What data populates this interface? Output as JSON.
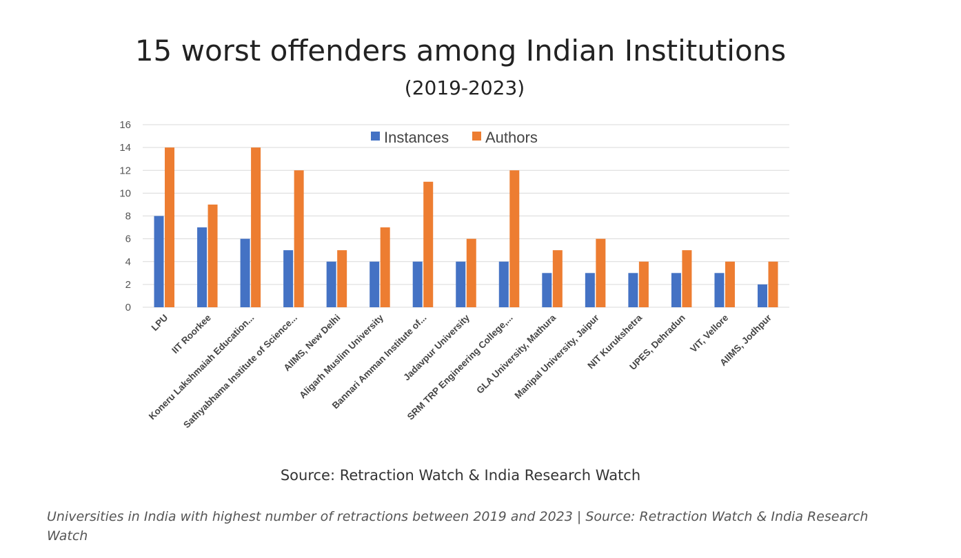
{
  "chart_data": {
    "type": "bar",
    "title": "15 worst offenders among Indian Institutions",
    "subtitle": "(2019-2023)",
    "categories": [
      "LPU",
      "IIT Roorkee",
      "Koneru Lakshmaiah Education...",
      "Sathyabhama Institute of Science...",
      "AIIMS, New Delhi",
      "Aligarh Muslim University",
      "Bannari Amman Institute of...",
      "Jadavpur University",
      "SRM TRP Engineering College,...",
      "GLA University, Mathura",
      "Manipal University, Jaipur",
      "NIT Kurukshetra",
      "UPES, Dehradun",
      "VIT, Vellore",
      "AIIMS, Jodhpur"
    ],
    "series": [
      {
        "name": "Instances",
        "color": "#4472C4",
        "values": [
          8,
          7,
          6,
          5,
          4,
          4,
          4,
          4,
          4,
          3,
          3,
          3,
          3,
          3,
          2
        ]
      },
      {
        "name": "Authors",
        "color": "#ED7D31",
        "values": [
          14,
          9,
          14,
          12,
          5,
          7,
          11,
          6,
          12,
          5,
          6,
          4,
          5,
          4,
          4
        ]
      }
    ],
    "ylim": [
      0,
      16
    ],
    "yticks": [
      0,
      2,
      4,
      6,
      8,
      10,
      12,
      14,
      16
    ],
    "grid": true,
    "legend_position": "top-center",
    "source": "Source: Retraction Watch & India Research Watch"
  },
  "caption": "Universities in India with highest number of retractions between 2019 and 2023 | Source: Retraction Watch & India Research Watch"
}
